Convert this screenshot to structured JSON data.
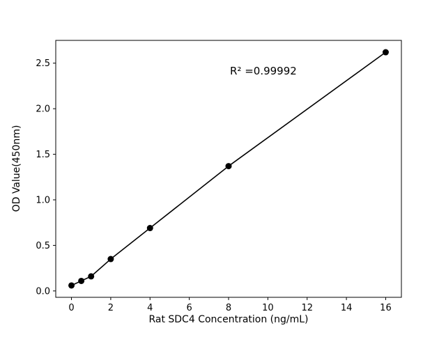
{
  "chart_data": {
    "type": "scatter",
    "title": "",
    "xlabel": "Rat SDC4 Concentration (ng/mL)",
    "ylabel": "OD Value(450nm)",
    "annotation": "R² =0.99992",
    "x": [
      0,
      0.5,
      1,
      2,
      4,
      8,
      16
    ],
    "y": [
      0.06,
      0.11,
      0.16,
      0.35,
      0.69,
      1.37,
      2.62
    ],
    "xlim": [
      -0.8,
      16.8
    ],
    "ylim": [
      -0.07,
      2.75
    ],
    "xticks": [
      0,
      2,
      4,
      6,
      8,
      10,
      12,
      14,
      16
    ],
    "yticks": [
      0.0,
      0.5,
      1.0,
      1.5,
      2.0,
      2.5
    ],
    "legend": null,
    "grid": false,
    "line_color": "#000000",
    "marker_color": "#000000",
    "axis_color": "#000000",
    "background_color": "#ffffff"
  }
}
